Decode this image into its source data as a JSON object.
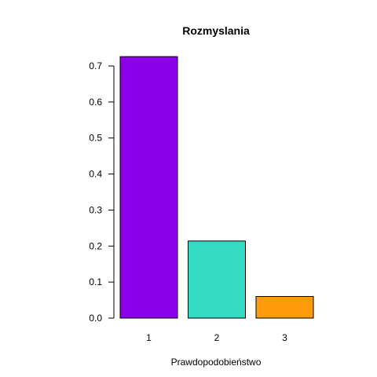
{
  "chart_data": {
    "type": "bar",
    "title": "Rozmyslania",
    "xlabel": "Prawdopodobieństwo",
    "ylabel": "",
    "categories": [
      "1",
      "2",
      "3"
    ],
    "values": [
      0.726,
      0.214,
      0.06
    ],
    "colors": [
      "#8a00e8",
      "#36dbc3",
      "#ff9a0a"
    ],
    "ylim": [
      0,
      0.7
    ],
    "yticks": [
      0.0,
      0.1,
      0.2,
      0.3,
      0.4,
      0.5,
      0.6,
      0.7
    ],
    "ytick_labels": [
      "0.0",
      "0.1",
      "0.2",
      "0.3",
      "0.4",
      "0.5",
      "0.6",
      "0.7"
    ],
    "grid": false,
    "legend": "none"
  }
}
